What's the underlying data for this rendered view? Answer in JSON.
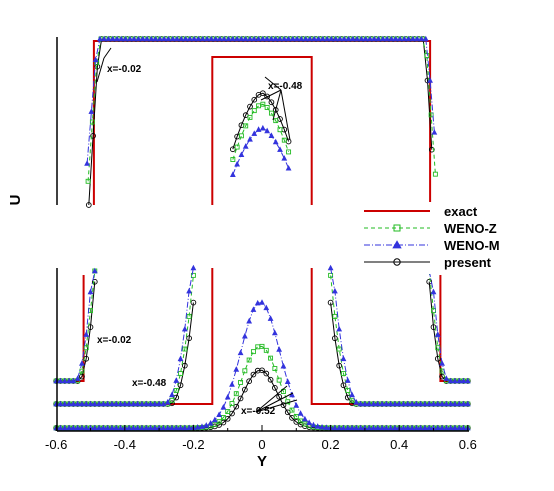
{
  "chart_data": {
    "type": "line",
    "title": "",
    "xlabel": "Y",
    "ylabel": "U",
    "xlim": [
      -0.6,
      0.6
    ],
    "xticks": [
      "-0.6",
      "-0.4",
      "-0.2",
      "0",
      "0.2",
      "0.4",
      "0.6"
    ],
    "grid": false,
    "legend_position": "right-middle",
    "legend": [
      {
        "name": "exact",
        "color": "#cc0000",
        "style": "solid",
        "marker": "none"
      },
      {
        "name": "WENO-Z",
        "color": "#22bb22",
        "style": "dashed",
        "marker": "square"
      },
      {
        "name": "WENO-M",
        "color": "#3333dd",
        "style": "dashdot",
        "marker": "triangle"
      },
      {
        "name": "present",
        "color": "#000000",
        "style": "solid",
        "marker": "circle"
      }
    ],
    "annotations": [
      {
        "text": "x=-0.02",
        "y": -0.42,
        "panel": "upper"
      },
      {
        "text": "x=-0.48",
        "y": 0.07,
        "panel": "upper"
      },
      {
        "text": "x=-0.02",
        "y": -0.43,
        "panel": "lower"
      },
      {
        "text": "x=-0.48",
        "y": -0.32,
        "panel": "lower"
      },
      {
        "text": "x=-0.52",
        "y": -0.02,
        "panel": "lower"
      }
    ],
    "panels": [
      {
        "name": "upper",
        "curves": [
          {
            "label": "x=-0.02",
            "exact_edges": [
              -0.49,
              0.49
            ],
            "numerical_edges": [
              -0.495,
              0.495
            ],
            "plateau": 1.0,
            "base": 0.0,
            "weno_m_edges": [
              -0.5,
              0.5
            ]
          },
          {
            "label": "x=-0.48",
            "exact_edges": [
              -0.145,
              0.145
            ],
            "exact_top": 0.9,
            "peak_center": 0.0,
            "peak_present": 0.7,
            "peak_weno_z": 0.62,
            "peak_weno_m": 0.45
          }
        ]
      },
      {
        "name": "lower",
        "curves": [
          {
            "label": "x=-0.02",
            "exact_edges": [
              -0.52,
              0.52
            ],
            "numerical_edges": [
              -0.53,
              0.53
            ],
            "base": 0.16
          },
          {
            "label": "x=-0.48",
            "exact_edges": [
              -0.145,
              0.145
            ],
            "peak_present": 0.2,
            "peak_weno_z": 0.36,
            "peak_weno_m": 0.6,
            "base": 0.08
          },
          {
            "label": "x=-0.52",
            "peak_present": 0.2,
            "peak_weno_z": 0.32,
            "peak_weno_m": 0.42,
            "base": 0.0
          }
        ]
      }
    ]
  }
}
